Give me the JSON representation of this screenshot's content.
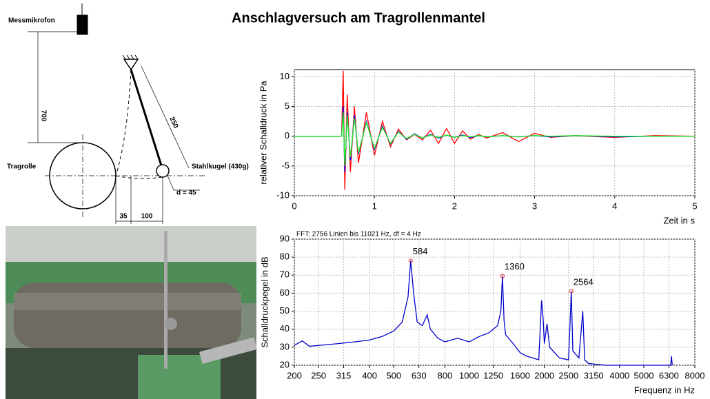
{
  "title": "Anschlagversuch am Tragrollenmantel",
  "diagram": {
    "microphone": "Messmikrofon",
    "height": "700",
    "length": "250",
    "roller": "Tragrolle",
    "ball": "Stahlkugel (430g)",
    "diameter": "d = 45",
    "offset": "35",
    "distance": "100"
  },
  "chart_data": [
    {
      "type": "line",
      "xlabel": "Zeit in s",
      "ylabel": "relativer Schalldruck in Pa",
      "x": [
        0,
        0.59,
        0.61,
        0.63,
        0.66,
        0.7,
        0.75,
        0.8,
        0.9,
        1.0,
        1.1,
        1.2,
        1.3,
        1.4,
        1.5,
        1.6,
        1.7,
        1.8,
        1.9,
        2.0,
        2.1,
        2.2,
        2.3,
        2.4,
        2.6,
        2.8,
        3.0,
        3.2,
        3.5,
        4.0,
        4.5,
        5.0
      ],
      "series": [
        {
          "color": "#ff0000",
          "values": [
            0,
            0,
            11,
            -9,
            7,
            -6,
            5,
            -4.5,
            4,
            -3.2,
            2.5,
            -1.8,
            1.2,
            -0.6,
            0.3,
            -0.6,
            1.0,
            -1.2,
            1.3,
            -1.2,
            0.9,
            -0.5,
            0.3,
            -0.3,
            0.6,
            -0.9,
            0.5,
            -0.2,
            0.1,
            -0.2,
            0.1,
            0
          ]
        },
        {
          "color": "#0000ff",
          "values": [
            0,
            0,
            5,
            -6,
            4,
            -4,
            3.5,
            -3,
            2.5,
            -2.2,
            1.7,
            -1.3,
            0.8,
            -0.5,
            0.4,
            -0.3,
            0.3,
            -0.3,
            0.2,
            -0.2,
            0.2,
            -0.2,
            0.1,
            -0.1,
            0.1,
            -0.1,
            0.1,
            -0.1,
            0.1,
            -0.1,
            0,
            0
          ]
        },
        {
          "color": "#22ee22",
          "values": [
            0,
            0,
            4,
            -5,
            3.5,
            -3.5,
            3,
            -2.8,
            2.3,
            -2,
            1.5,
            -1.2,
            0.7,
            -0.4,
            0.3,
            -0.3,
            0.2,
            -0.2,
            0.2,
            -0.2,
            0.1,
            -0.1,
            0.1,
            -0.1,
            0.1,
            -0.1,
            0.1,
            0,
            0.1,
            0,
            0,
            0
          ]
        }
      ],
      "xlim": [
        0,
        5
      ],
      "xticks": [
        0,
        1,
        2,
        3,
        4,
        5
      ],
      "ylim": [
        -10,
        11.2
      ],
      "yticks": [
        -10,
        -5,
        0,
        5,
        10
      ],
      "grid": true,
      "log": false
    },
    {
      "type": "line",
      "subtitle": "FFT: 2756 Linien bis 11021 Hz, df = 4 Hz",
      "xlabel": "Frequenz in Hz",
      "ylabel": "Schalldruckpegel in dB",
      "x": [
        200,
        215,
        230,
        250,
        300,
        350,
        400,
        450,
        500,
        540,
        570,
        584,
        600,
        620,
        650,
        680,
        700,
        750,
        800,
        900,
        1000,
        1100,
        1200,
        1300,
        1340,
        1360,
        1380,
        1400,
        1500,
        1600,
        1700,
        1800,
        1900,
        1950,
        1980,
        2000,
        2050,
        2100,
        2300,
        2500,
        2564,
        2600,
        2750,
        2850,
        2900,
        3000,
        3500,
        5000,
        6400,
        6450,
        6500
      ],
      "series": [
        {
          "color": "#0000cc",
          "values": [
            31,
            33.5,
            30.5,
            31,
            32,
            33,
            34,
            36,
            39,
            44,
            58,
            78,
            60,
            44,
            42,
            48,
            40,
            35,
            33,
            35,
            33,
            36,
            38,
            42,
            50,
            69.5,
            45,
            37,
            32,
            27,
            25,
            24,
            23,
            56,
            45,
            32,
            43,
            30,
            24,
            23,
            61,
            28,
            24,
            50,
            23,
            21,
            20,
            20,
            20,
            25,
            20
          ]
        }
      ],
      "peaks": [
        {
          "x": 584,
          "y": 78
        },
        {
          "x": 1360,
          "y": 69.5
        },
        {
          "x": 2564,
          "y": 61
        }
      ],
      "xlim": [
        200,
        8000
      ],
      "xticks": [
        200,
        250,
        315,
        400,
        500,
        630,
        800,
        1000,
        1250,
        1600,
        2000,
        2500,
        3150,
        4000,
        5000,
        6300,
        8000
      ],
      "ylim": [
        20,
        90
      ],
      "yticks": [
        20,
        30,
        40,
        50,
        60,
        70,
        80,
        90
      ],
      "grid": true,
      "log": true
    }
  ]
}
